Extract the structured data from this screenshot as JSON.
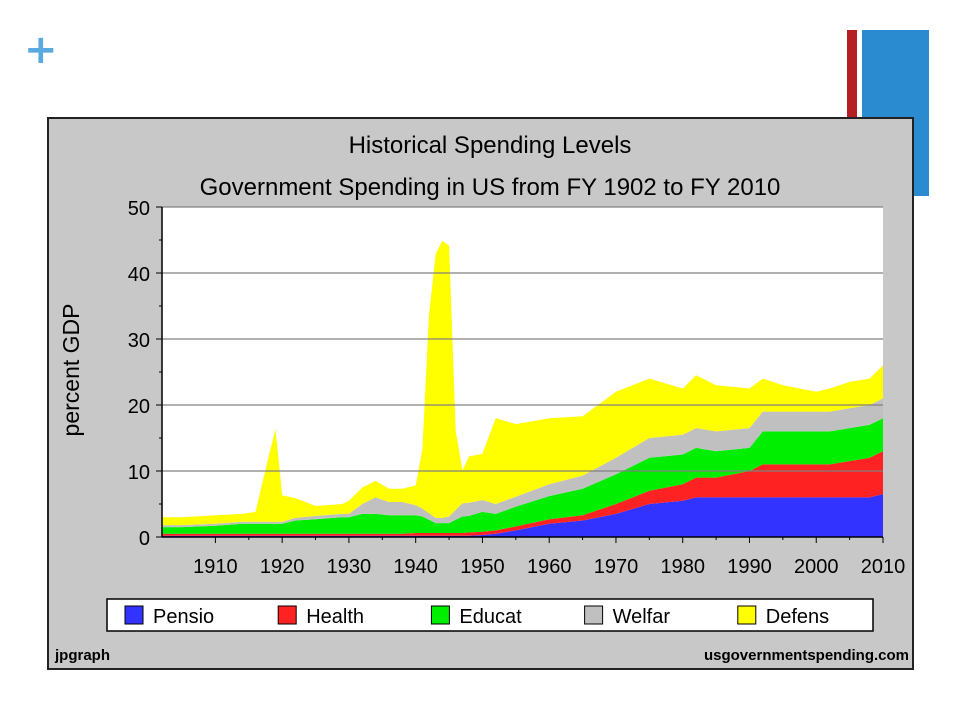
{
  "slide": {
    "plus_symbol": "+"
  },
  "chart_data": {
    "type": "area",
    "stacked": true,
    "title": "Historical Spending Levels",
    "subtitle": "Government Spending in US from FY 1902 to FY 2010",
    "xlabel": "",
    "ylabel": "percent GDP",
    "xlim": [
      1902,
      2010
    ],
    "ylim": [
      0,
      50
    ],
    "x_ticks": [
      "1910",
      "1920",
      "1930",
      "1940",
      "1950",
      "1960",
      "1970",
      "1980",
      "1990",
      "2000",
      "2010"
    ],
    "y_ticks": [
      "0",
      "10",
      "20",
      "30",
      "40",
      "50"
    ],
    "grid": true,
    "legend_position": "bottom",
    "footer_left": "jpgraph",
    "footer_right": "usgovernmentspending.com",
    "x": [
      1902,
      1905,
      1910,
      1914,
      1916,
      1918,
      1919,
      1920,
      1922,
      1925,
      1929,
      1930,
      1932,
      1934,
      1936,
      1938,
      1940,
      1941,
      1942,
      1943,
      1944,
      1945,
      1946,
      1947,
      1948,
      1950,
      1952,
      1955,
      1960,
      1965,
      1970,
      1975,
      1980,
      1982,
      1985,
      1990,
      1992,
      1995,
      2000,
      2002,
      2005,
      2008,
      2010
    ],
    "series": [
      {
        "name": "Pensio",
        "color": "#3333ff",
        "values": [
          0.2,
          0.2,
          0.2,
          0.2,
          0.2,
          0.2,
          0.2,
          0.2,
          0.2,
          0.2,
          0.2,
          0.2,
          0.2,
          0.2,
          0.2,
          0.2,
          0.2,
          0.2,
          0.2,
          0.2,
          0.2,
          0.2,
          0.2,
          0.2,
          0.2,
          0.3,
          0.5,
          1,
          2,
          2.5,
          3.5,
          5,
          5.5,
          6,
          6,
          6,
          6,
          6,
          6,
          6,
          6,
          6,
          6.5
        ]
      },
      {
        "name": "Health",
        "color": "#ff2222",
        "values": [
          0.3,
          0.3,
          0.3,
          0.3,
          0.3,
          0.3,
          0.3,
          0.3,
          0.3,
          0.3,
          0.3,
          0.3,
          0.3,
          0.3,
          0.3,
          0.3,
          0.4,
          0.4,
          0.4,
          0.4,
          0.4,
          0.4,
          0.4,
          0.4,
          0.5,
          0.5,
          0.5,
          0.6,
          0.7,
          0.8,
          1.5,
          2,
          2.5,
          3,
          3,
          4,
          5,
          5,
          5,
          5,
          5.5,
          6,
          6.5
        ]
      },
      {
        "name": "Educat",
        "color": "#00ee00",
        "values": [
          1,
          1,
          1.2,
          1.5,
          1.5,
          1.5,
          1.5,
          1.5,
          2,
          2.2,
          2.5,
          2.5,
          3,
          3,
          2.8,
          2.8,
          2.7,
          2.5,
          2,
          1.5,
          1.5,
          1.5,
          2,
          2.5,
          2.5,
          3,
          2.5,
          3,
          3.5,
          4,
          4.5,
          5,
          4.5,
          4.5,
          4,
          3.5,
          5,
          5,
          5,
          5,
          5,
          5,
          5
        ]
      },
      {
        "name": "Welfar",
        "color": "#c0c0c0",
        "values": [
          0.3,
          0.3,
          0.3,
          0.3,
          0.3,
          0.3,
          0.3,
          0.3,
          0.4,
          0.5,
          0.5,
          0.5,
          1.5,
          2.5,
          2,
          2,
          1.5,
          1.2,
          1,
          0.8,
          0.8,
          1,
          1.5,
          2,
          2,
          1.8,
          1.5,
          1.5,
          1.8,
          2,
          2.5,
          3,
          3,
          3,
          3,
          3,
          3,
          3,
          3,
          3,
          3,
          3,
          3
        ]
      },
      {
        "name": "Defens",
        "color": "#ffff00",
        "values": [
          1.2,
          1.2,
          1.3,
          1.2,
          1.5,
          10,
          14,
          4,
          3,
          1.5,
          1.5,
          2,
          2.5,
          2.5,
          2,
          2,
          3,
          9,
          30,
          40,
          42,
          41,
          12,
          5,
          7,
          7,
          13,
          11,
          10,
          9,
          10,
          9,
          7,
          8,
          7,
          6,
          5,
          4,
          3,
          3.5,
          4,
          4,
          5
        ]
      }
    ]
  }
}
